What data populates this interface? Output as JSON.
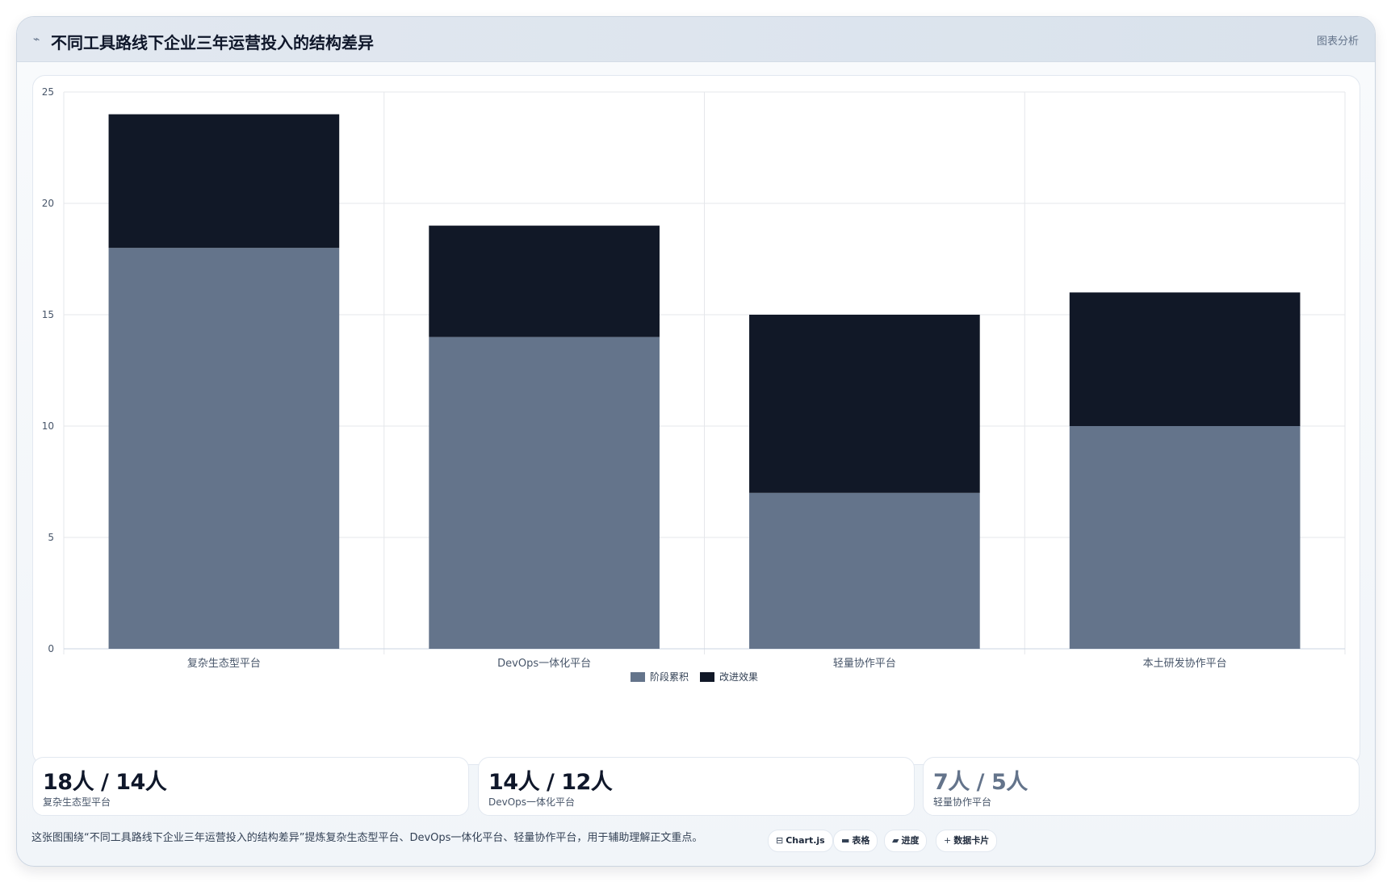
{
  "header": {
    "title": "不同工具路线下企业三年运营投入的结构差异",
    "tag": "图表分析",
    "icon": "trend-icon"
  },
  "colors": {
    "series_1": "#64748b",
    "series_2": "#111827",
    "grid": "#e5e7eb",
    "tick": "#475569"
  },
  "chart_data": {
    "type": "bar",
    "stacked": true,
    "categories": [
      "复杂生态型平台",
      "DevOps一体化平台",
      "轻量协作平台",
      "本土研发协作平台"
    ],
    "series": [
      {
        "name": "阶段累积",
        "values": [
          18,
          14,
          7,
          10
        ]
      },
      {
        "name": "改进效果",
        "values": [
          6,
          5,
          8,
          6
        ]
      }
    ],
    "ylim": [
      0,
      25
    ],
    "yticks": [
      0,
      5,
      10,
      15,
      20,
      25
    ],
    "grid": true,
    "legend": "bottom-center"
  },
  "stats": [
    {
      "value": "18人 / 14人",
      "label": "复杂生态型平台"
    },
    {
      "value": "14人 / 12人",
      "label": "DevOps一体化平台"
    },
    {
      "value": "7人 / 5人",
      "label": "轻量协作平台"
    }
  ],
  "caption": "这张图围绕“不同工具路线下企业三年运营投入的结构差异”提炼复杂生态型平台、DevOps一体化平台、轻量协作平台，用于辅助理解正文重点。",
  "pills": [
    {
      "icon": "chart-icon",
      "glyph": "⊟",
      "label": "Chart.js"
    },
    {
      "icon": "table-icon",
      "glyph": "▬",
      "label": "表格"
    },
    {
      "icon": "progress-icon",
      "glyph": "▰",
      "label": "进度"
    },
    {
      "icon": "card-icon",
      "glyph": "+",
      "label": "数据卡片"
    }
  ]
}
